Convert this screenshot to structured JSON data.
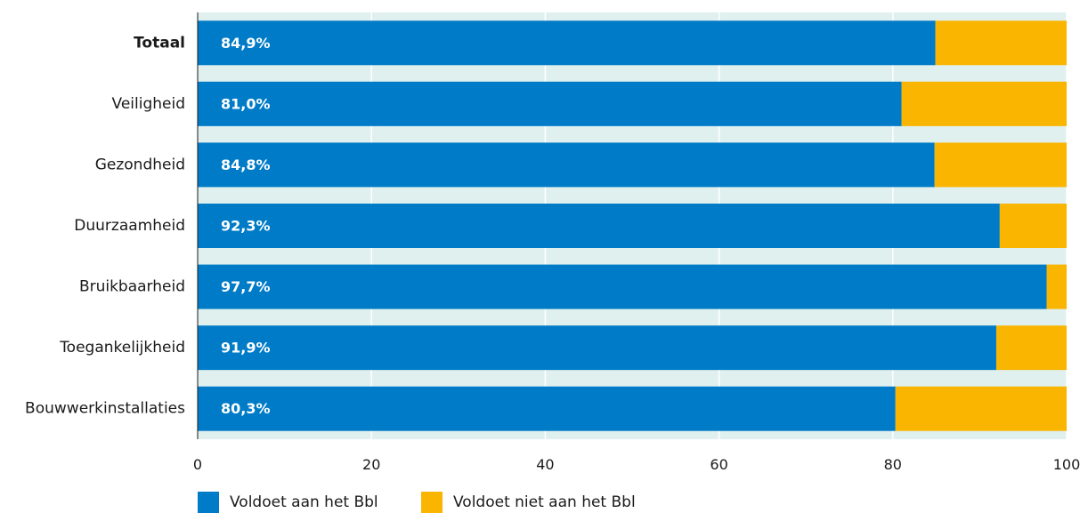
{
  "chart_data": {
    "type": "bar",
    "orientation": "horizontal",
    "stacked": true,
    "categories": [
      "Totaal",
      "Veiligheid",
      "Gezondheid",
      "Duurzaamheid",
      "Bruikbaarheid",
      "Toegankelijkheid",
      "Bouwwerkinstallaties"
    ],
    "bold_categories": [
      "Totaal"
    ],
    "series": [
      {
        "name": "Voldoet aan het Bbl",
        "color": "#007bc7",
        "values": [
          84.9,
          81.0,
          84.8,
          92.3,
          97.7,
          91.9,
          80.3
        ],
        "labels": [
          "84,9%",
          "81,0%",
          "84,8%",
          "92,3%",
          "97,7%",
          "91,9%",
          "80,3%"
        ]
      },
      {
        "name": "Voldoet niet aan het Bbl",
        "color": "#f9b500",
        "values": [
          15.1,
          19.0,
          15.2,
          7.7,
          2.3,
          8.1,
          19.7
        ]
      }
    ],
    "xlim": [
      0,
      100
    ],
    "xticks": [
      0,
      20,
      40,
      60,
      80,
      100
    ],
    "xtick_labels": [
      "0",
      "20",
      "40",
      "60",
      "80",
      "100"
    ],
    "grid": true,
    "background_color": "#dff0ef",
    "legend_position": "bottom-left"
  }
}
